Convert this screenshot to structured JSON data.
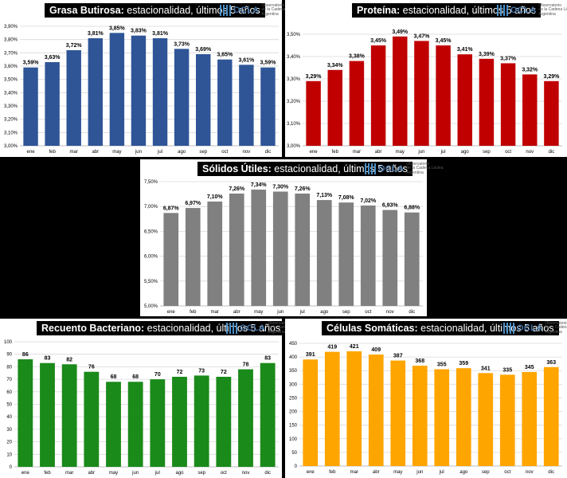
{
  "logo": {
    "name": "OCLA",
    "line1": "Observatorio",
    "line2": "de la Cadena Láctea",
    "line3": "Argentina"
  },
  "chart_data": [
    {
      "type": "bar",
      "title_bold": "Grasa Butirosa:",
      "title_rest": " estacionalidad, últimos 5 años",
      "categories": [
        "ene",
        "feb",
        "mar",
        "abr",
        "may",
        "jun",
        "jul",
        "ago",
        "sep",
        "oct",
        "nov",
        "dic"
      ],
      "values": [
        3.59,
        3.63,
        3.72,
        3.81,
        3.85,
        3.83,
        3.81,
        3.73,
        3.69,
        3.65,
        3.61,
        3.59
      ],
      "value_labels": [
        "3,59%",
        "3,63%",
        "3,72%",
        "3,81%",
        "3,85%",
        "3,83%",
        "3,81%",
        "3,73%",
        "3,69%",
        "3,65%",
        "3,61%",
        "3,59%"
      ],
      "ylim": [
        3.0,
        3.9
      ],
      "yticks": [
        3.0,
        3.1,
        3.2,
        3.3,
        3.4,
        3.5,
        3.6,
        3.7,
        3.8,
        3.9
      ],
      "ytick_labels": [
        "3,00%",
        "3,10%",
        "3,20%",
        "3,30%",
        "3,40%",
        "3,50%",
        "3,60%",
        "3,70%",
        "3,80%",
        "3,90%"
      ],
      "color": "#2f5597",
      "xlabel": "",
      "ylabel": "",
      "grid": true
    },
    {
      "type": "bar",
      "title_bold": "Proteína:",
      "title_rest": " estacionalidad, últimos 5 años",
      "categories": [
        "ene",
        "feb",
        "mar",
        "abr",
        "may",
        "jun",
        "jul",
        "ago",
        "sep",
        "oct",
        "nov",
        "dic"
      ],
      "values": [
        3.29,
        3.34,
        3.38,
        3.45,
        3.49,
        3.47,
        3.45,
        3.41,
        3.39,
        3.37,
        3.32,
        3.29
      ],
      "value_labels": [
        "3,29%",
        "3,34%",
        "3,38%",
        "3,45%",
        "3,49%",
        "3,47%",
        "3,45%",
        "3,41%",
        "3,39%",
        "3,37%",
        "3,32%",
        "3,29%"
      ],
      "ylim": [
        3.0,
        3.5
      ],
      "yticks": [
        3.0,
        3.1,
        3.2,
        3.3,
        3.4,
        3.5
      ],
      "ytick_labels": [
        "3,00%",
        "3,10%",
        "3,20%",
        "3,30%",
        "3,40%",
        "3,50%"
      ],
      "color": "#c00000",
      "xlabel": "",
      "ylabel": "",
      "grid": true
    },
    {
      "type": "bar",
      "title_bold": "Sólidos Útiles:",
      "title_rest": " estacionalidad, últimos 5 años",
      "categories": [
        "ene",
        "feb",
        "mar",
        "abr",
        "may",
        "jun",
        "jul",
        "ago",
        "sep",
        "oct",
        "nov",
        "dic"
      ],
      "values": [
        6.87,
        6.97,
        7.1,
        7.26,
        7.34,
        7.3,
        7.26,
        7.13,
        7.08,
        7.02,
        6.93,
        6.88
      ],
      "value_labels": [
        "6,87%",
        "6,97%",
        "7,10%",
        "7,26%",
        "7,34%",
        "7,30%",
        "7,26%",
        "7,13%",
        "7,08%",
        "7,02%",
        "6,93%",
        "6,88%"
      ],
      "ylim": [
        5.0,
        7.5
      ],
      "yticks": [
        5.0,
        5.5,
        6.0,
        6.5,
        7.0,
        7.5
      ],
      "ytick_labels": [
        "5,00%",
        "5,50%",
        "6,00%",
        "6,50%",
        "7,00%",
        "7,50%"
      ],
      "color": "#808080",
      "xlabel": "",
      "ylabel": "",
      "grid": true
    },
    {
      "type": "bar",
      "title_bold": "Recuento Bacteriano:",
      "title_rest": " estacionalidad, últimos 5 años",
      "categories": [
        "ene",
        "feb",
        "mar",
        "abr",
        "may",
        "jun",
        "jul",
        "ago",
        "sep",
        "oct",
        "nov",
        "dic"
      ],
      "values": [
        86,
        83,
        82,
        76,
        68,
        68,
        70,
        72,
        73,
        72,
        78,
        83
      ],
      "value_labels": [
        "86",
        "83",
        "82",
        "76",
        "68",
        "68",
        "70",
        "72",
        "73",
        "72",
        "78",
        "83"
      ],
      "ylim": [
        0,
        100
      ],
      "yticks": [
        0,
        10,
        20,
        30,
        40,
        50,
        60,
        70,
        80,
        90,
        100
      ],
      "ytick_labels": [
        "0",
        "10",
        "20",
        "30",
        "40",
        "50",
        "60",
        "70",
        "80",
        "90",
        "100"
      ],
      "color": "#1a8a1a",
      "xlabel": "",
      "ylabel": "",
      "grid": true
    },
    {
      "type": "bar",
      "title_bold": "Células Somáticas:",
      "title_rest": " estacionalidad, últimos 5 años",
      "categories": [
        "ene",
        "feb",
        "mar",
        "abr",
        "may",
        "jun",
        "jul",
        "ago",
        "sep",
        "oct",
        "nov",
        "dic"
      ],
      "values": [
        391,
        419,
        421,
        409,
        387,
        368,
        355,
        359,
        341,
        335,
        345,
        363
      ],
      "value_labels": [
        "391",
        "419",
        "421",
        "409",
        "387",
        "368",
        "355",
        "359",
        "341",
        "335",
        "345",
        "363"
      ],
      "ylim": [
        0,
        450
      ],
      "yticks": [
        0,
        50,
        100,
        150,
        200,
        250,
        300,
        350,
        400,
        450
      ],
      "ytick_labels": [
        "0",
        "50",
        "100",
        "150",
        "200",
        "250",
        "300",
        "350",
        "400",
        "450"
      ],
      "color": "#ffa500",
      "xlabel": "",
      "ylabel": "",
      "grid": true
    }
  ]
}
